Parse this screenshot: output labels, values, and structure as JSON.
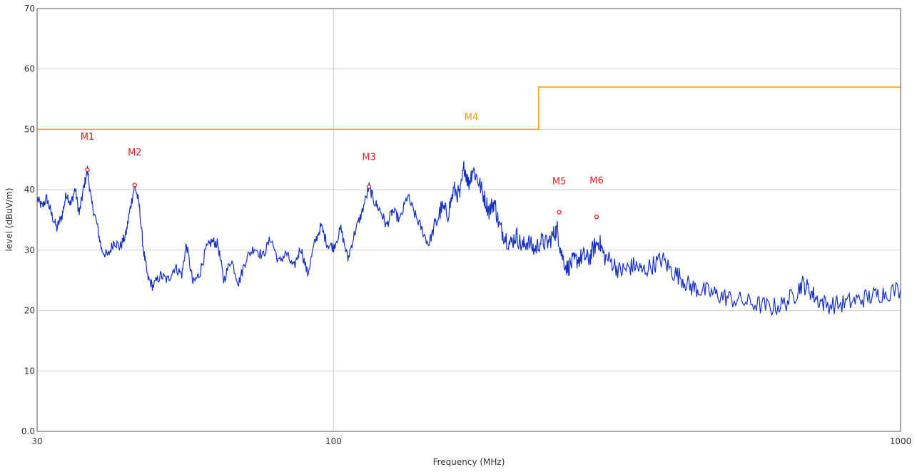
{
  "chart_data": {
    "type": "line",
    "title": "",
    "xlabel": "Frequency (MHz)",
    "ylabel": "level (dBuV/m)",
    "x_scale": "log",
    "xlim": [
      30,
      1000
    ],
    "ylim": [
      0,
      70
    ],
    "x_ticks": [
      {
        "value": 30,
        "label": "30"
      },
      {
        "value": 100,
        "label": "100"
      },
      {
        "value": 1000,
        "label": "1000"
      }
    ],
    "y_ticks": [
      {
        "value": 0,
        "label": "0.0"
      },
      {
        "value": 10,
        "label": "10"
      },
      {
        "value": 20,
        "label": "20"
      },
      {
        "value": 30,
        "label": "30"
      },
      {
        "value": 40,
        "label": "40"
      },
      {
        "value": 50,
        "label": "50"
      },
      {
        "value": 60,
        "label": "60"
      },
      {
        "value": 70,
        "label": "70"
      }
    ],
    "grid": true,
    "colors": {
      "trace": "#1530c0",
      "limit": "#f0a000",
      "marker": "#e02020",
      "grid": "#cfcfcf"
    },
    "limit_line": {
      "points": [
        [
          30,
          50
        ],
        [
          230,
          50
        ],
        [
          230,
          57
        ],
        [
          1000,
          57
        ]
      ]
    },
    "trace": {
      "points": [
        [
          30,
          38.5
        ],
        [
          30.6,
          37.2
        ],
        [
          31.2,
          38.6
        ],
        [
          31.8,
          36.0
        ],
        [
          32.5,
          33.6
        ],
        [
          33.2,
          35.8
        ],
        [
          33.8,
          39.5
        ],
        [
          34.4,
          37.5
        ],
        [
          35.0,
          40.2
        ],
        [
          35.6,
          36.0
        ],
        [
          36.2,
          40.0
        ],
        [
          36.8,
          43.3
        ],
        [
          37.4,
          38.0
        ],
        [
          38.2,
          34.5
        ],
        [
          39.0,
          30.0
        ],
        [
          40.0,
          29.0
        ],
        [
          41.0,
          31.5
        ],
        [
          42.0,
          30.5
        ],
        [
          43.0,
          32.5
        ],
        [
          43.8,
          37.0
        ],
        [
          44.6,
          40.8
        ],
        [
          45.4,
          37.5
        ],
        [
          46.2,
          30.0
        ],
        [
          47.0,
          25.5
        ],
        [
          48.0,
          24.0
        ],
        [
          49.5,
          25.8
        ],
        [
          51.0,
          25.0
        ],
        [
          52.5,
          27.2
        ],
        [
          54.0,
          26.0
        ],
        [
          55.0,
          31.0
        ],
        [
          56.5,
          24.5
        ],
        [
          58.0,
          26.0
        ],
        [
          59.5,
          30.0
        ],
        [
          61.0,
          31.5
        ],
        [
          62.5,
          31.0
        ],
        [
          64.0,
          25.0
        ],
        [
          66.0,
          28.5
        ],
        [
          68.0,
          24.5
        ],
        [
          70.0,
          28.5
        ],
        [
          72.5,
          30.5
        ],
        [
          75.0,
          29.0
        ],
        [
          77.5,
          32.0
        ],
        [
          80.0,
          28.0
        ],
        [
          82.5,
          29.5
        ],
        [
          85.0,
          27.0
        ],
        [
          87.5,
          30.5
        ],
        [
          90.0,
          26.0
        ],
        [
          92.5,
          31.0
        ],
        [
          95.0,
          34.0
        ],
        [
          97.5,
          31.0
        ],
        [
          100.0,
          30.5
        ],
        [
          103.0,
          33.5
        ],
        [
          106.0,
          28.5
        ],
        [
          109.0,
          33.0
        ],
        [
          112.0,
          36.0
        ],
        [
          115.5,
          40.5
        ],
        [
          118.0,
          38.0
        ],
        [
          121.0,
          36.5
        ],
        [
          124.0,
          34.0
        ],
        [
          127.0,
          36.5
        ],
        [
          131.0,
          35.0
        ],
        [
          135.0,
          39.0
        ],
        [
          139.0,
          36.0
        ],
        [
          143.0,
          33.5
        ],
        [
          147.0,
          31.0
        ],
        [
          151.0,
          34.0
        ],
        [
          155.0,
          37.0
        ],
        [
          159.0,
          36.0
        ],
        [
          163.0,
          40.0
        ],
        [
          167.0,
          39.0
        ],
        [
          170.0,
          44.0
        ],
        [
          173.0,
          41.0
        ],
        [
          176.0,
          43.5
        ],
        [
          180.0,
          41.5
        ],
        [
          184.0,
          39.0
        ],
        [
          188.0,
          36.5
        ],
        [
          192.0,
          38.0
        ],
        [
          196.0,
          34.0
        ],
        [
          200.0,
          32.5
        ],
        [
          205.0,
          31.0
        ],
        [
          210.0,
          32.5
        ],
        [
          215.0,
          30.5
        ],
        [
          220.0,
          31.5
        ],
        [
          226.0,
          30.0
        ],
        [
          232.0,
          31.5
        ],
        [
          238.0,
          31.0
        ],
        [
          244.0,
          32.5
        ],
        [
          248.0,
          33.5
        ],
        [
          252.0,
          29.5
        ],
        [
          258.0,
          27.0
        ],
        [
          264.0,
          28.0
        ],
        [
          270.0,
          28.5
        ],
        [
          276.0,
          29.0
        ],
        [
          282.0,
          28.5
        ],
        [
          288.0,
          30.5
        ],
        [
          294.0,
          31.5
        ],
        [
          300.0,
          29.0
        ],
        [
          310.0,
          28.0
        ],
        [
          320.0,
          26.5
        ],
        [
          330.0,
          27.0
        ],
        [
          340.0,
          27.5
        ],
        [
          350.0,
          26.5
        ],
        [
          365.0,
          27.5
        ],
        [
          380.0,
          28.5
        ],
        [
          395.0,
          26.5
        ],
        [
          410.0,
          25.5
        ],
        [
          425.0,
          24.0
        ],
        [
          440.0,
          23.5
        ],
        [
          460.0,
          23.0
        ],
        [
          480.0,
          22.5
        ],
        [
          500.0,
          22.0
        ],
        [
          530.0,
          21.5
        ],
        [
          560.0,
          21.0
        ],
        [
          590.0,
          20.5
        ],
        [
          620.0,
          21.0
        ],
        [
          650.0,
          22.5
        ],
        [
          670.0,
          24.5
        ],
        [
          690.0,
          23.5
        ],
        [
          710.0,
          22.0
        ],
        [
          740.0,
          21.0
        ],
        [
          780.0,
          21.0
        ],
        [
          820.0,
          21.5
        ],
        [
          860.0,
          22.0
        ],
        [
          900.0,
          22.5
        ],
        [
          940.0,
          23.0
        ],
        [
          1000.0,
          23.5
        ]
      ]
    },
    "markers": [
      {
        "label": "M1",
        "x": 36.8,
        "y": 43.3,
        "label_dx": 0,
        "label_dy": 5.0,
        "color": "#e02020",
        "dot": true
      },
      {
        "label": "M2",
        "x": 44.6,
        "y": 40.8,
        "label_dx": 0,
        "label_dy": 4.9,
        "color": "#e02020",
        "dot": true
      },
      {
        "label": "M3",
        "x": 115.5,
        "y": 40.5,
        "label_dx": 0,
        "label_dy": 4.4,
        "color": "#e02020",
        "dot": true
      },
      {
        "label": "M4",
        "x": 175.0,
        "y": 41.5,
        "label_dx": 0,
        "label_dy": 10.0,
        "color": "#f0a000",
        "dot": false
      },
      {
        "label": "M5",
        "x": 250.0,
        "y": 36.3,
        "label_dx": 0,
        "label_dy": 4.6,
        "color": "#e02020",
        "dot": true
      },
      {
        "label": "M6",
        "x": 291.0,
        "y": 35.5,
        "label_dx": 0,
        "label_dy": 5.5,
        "color": "#e02020",
        "dot": true
      }
    ]
  }
}
